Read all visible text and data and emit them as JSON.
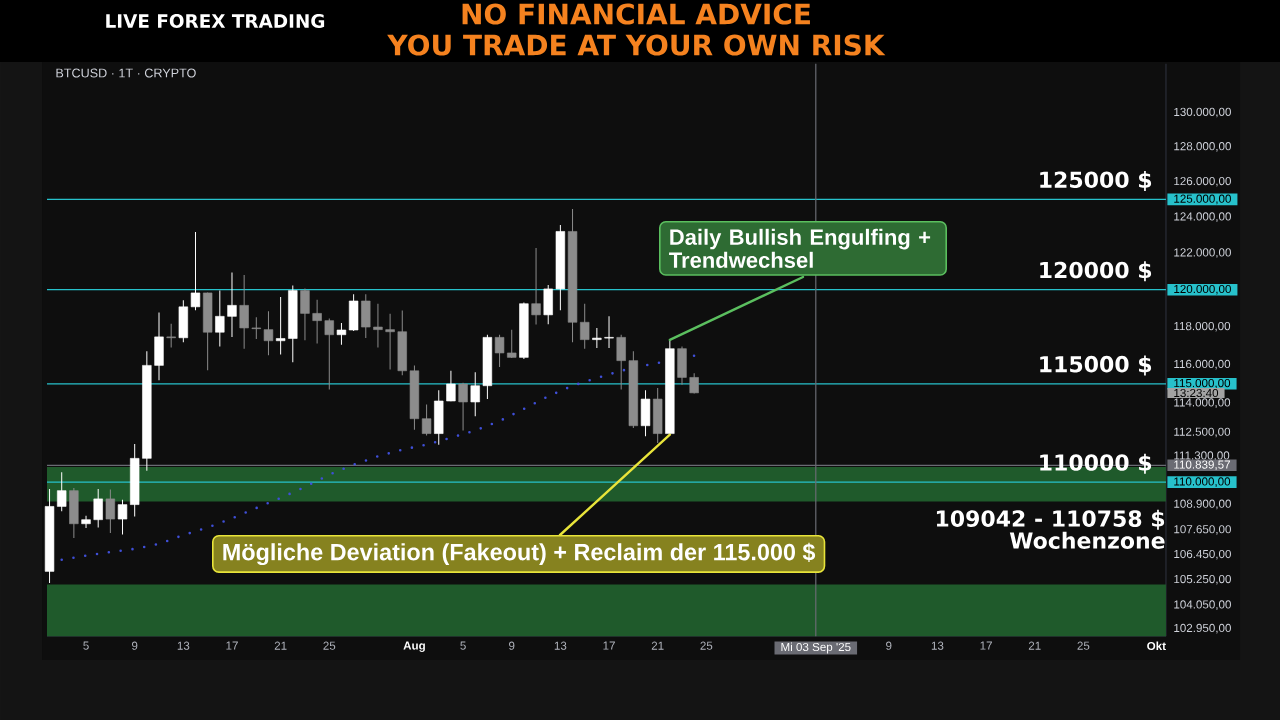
{
  "chart_data": {
    "type": "candlestick",
    "title": "BTCUSD · 1T · CRYPTO",
    "x": [
      "2025-07-02",
      "2025-07-03",
      "2025-07-04",
      "2025-07-05",
      "2025-07-06",
      "2025-07-07",
      "2025-07-08",
      "2025-07-09",
      "2025-07-10",
      "2025-07-11",
      "2025-07-12",
      "2025-07-13",
      "2025-07-14",
      "2025-07-15",
      "2025-07-16",
      "2025-07-17",
      "2025-07-18",
      "2025-07-19",
      "2025-07-20",
      "2025-07-21",
      "2025-07-22",
      "2025-07-23",
      "2025-07-24",
      "2025-07-25",
      "2025-07-26",
      "2025-07-27",
      "2025-07-28",
      "2025-07-29",
      "2025-07-30",
      "2025-07-31",
      "2025-08-01",
      "2025-08-02",
      "2025-08-03",
      "2025-08-04",
      "2025-08-05",
      "2025-08-06",
      "2025-08-07",
      "2025-08-08",
      "2025-08-09",
      "2025-08-10",
      "2025-08-11",
      "2025-08-12",
      "2025-08-13",
      "2025-08-14",
      "2025-08-15",
      "2025-08-16",
      "2025-08-17",
      "2025-08-18",
      "2025-08-19",
      "2025-08-20",
      "2025-08-21",
      "2025-08-22",
      "2025-08-23",
      "2025-08-24"
    ],
    "ohlc": [
      [
        105650,
        109660,
        105100,
        108800
      ],
      [
        108800,
        110490,
        108560,
        109580
      ],
      [
        109580,
        109710,
        107260,
        107950
      ],
      [
        107950,
        108340,
        107740,
        108150
      ],
      [
        108150,
        109660,
        107770,
        109170
      ],
      [
        109170,
        109630,
        107500,
        108180
      ],
      [
        108180,
        109130,
        107420,
        108890
      ],
      [
        108890,
        111910,
        108310,
        111190
      ],
      [
        111190,
        116700,
        110570,
        115960
      ],
      [
        115960,
        118770,
        115180,
        117460
      ],
      [
        117460,
        118170,
        116910,
        117420
      ],
      [
        117420,
        119420,
        117180,
        119070
      ],
      [
        119070,
        123170,
        118880,
        119820
      ],
      [
        119820,
        119850,
        115700,
        117710
      ],
      [
        117710,
        119960,
        116960,
        118560
      ],
      [
        118560,
        120940,
        117460,
        119150
      ],
      [
        119150,
        120800,
        116840,
        117940
      ],
      [
        117940,
        118510,
        117350,
        117900
      ],
      [
        117850,
        118830,
        116490,
        117260
      ],
      [
        117260,
        119600,
        116530,
        117380
      ],
      [
        117380,
        120230,
        116120,
        119950
      ],
      [
        119950,
        120070,
        117280,
        118720
      ],
      [
        118720,
        119460,
        117110,
        118330
      ],
      [
        118330,
        118440,
        114700,
        117580
      ],
      [
        117580,
        118210,
        117050,
        117830
      ],
      [
        117830,
        119750,
        117780,
        119390
      ],
      [
        119390,
        119750,
        117410,
        117990
      ],
      [
        117990,
        119230,
        116910,
        117850
      ],
      [
        117850,
        118700,
        115740,
        117740
      ],
      [
        117740,
        118870,
        115440,
        115680
      ],
      [
        115680,
        115960,
        112640,
        113200
      ],
      [
        113200,
        113930,
        112340,
        112440
      ],
      [
        112440,
        114660,
        111880,
        114110
      ],
      [
        114110,
        115680,
        114090,
        114990
      ],
      [
        114990,
        115050,
        112600,
        114060
      ],
      [
        114060,
        115600,
        113320,
        114900
      ],
      [
        114900,
        117580,
        114210,
        117440
      ],
      [
        117440,
        117580,
        115880,
        116610
      ],
      [
        116610,
        117850,
        116350,
        116380
      ],
      [
        116380,
        119300,
        116300,
        119240
      ],
      [
        119240,
        122280,
        118120,
        118640
      ],
      [
        118640,
        120260,
        118140,
        120040
      ],
      [
        120040,
        123560,
        118880,
        123200
      ],
      [
        123200,
        124460,
        117180,
        118240
      ],
      [
        118240,
        119230,
        116840,
        117320
      ],
      [
        117320,
        117940,
        116880,
        117400
      ],
      [
        117400,
        118560,
        116880,
        117440
      ],
      [
        117440,
        117580,
        114700,
        116210
      ],
      [
        116210,
        116700,
        112730,
        112840
      ],
      [
        112840,
        114660,
        112300,
        114210
      ],
      [
        114210,
        114780,
        111970,
        112440
      ],
      [
        112440,
        117320,
        112400,
        116840
      ],
      [
        116840,
        116960,
        114950,
        115330
      ],
      [
        115330,
        115550,
        114500,
        114530
      ]
    ],
    "colors": [
      "#FFFFFF",
      "#FFFFFF",
      "#8C8C8C",
      "#FFFFFF",
      "#FFFFFF",
      "#8C8C8C",
      "#FFFFFF",
      "#FFFFFF",
      "#FFFFFF",
      "#FFFFFF",
      "#8C8C8C",
      "#FFFFFF",
      "#FFFFFF",
      "#8C8C8C",
      "#FFFFFF",
      "#FFFFFF",
      "#8C8C8C",
      "#8C8C8C",
      "#8C8C8C",
      "#FFFFFF",
      "#FFFFFF",
      "#8C8C8C",
      "#8C8C8C",
      "#8C8C8C",
      "#FFFFFF",
      "#FFFFFF",
      "#8C8C8C",
      "#8C8C8C",
      "#8C8C8C",
      "#8C8C8C",
      "#8C8C8C",
      "#8C8C8C",
      "#FFFFFF",
      "#FFFFFF",
      "#8C8C8C",
      "#FFFFFF",
      "#FFFFFF",
      "#8C8C8C",
      "#8C8C8C",
      "#FFFFFF",
      "#8C8C8C",
      "#FFFFFF",
      "#FFFFFF",
      "#8C8C8C",
      "#8C8C8C",
      "#FFFFFF",
      "#FFFFFF",
      "#8C8C8C",
      "#8C8C8C",
      "#FFFFFF",
      "#8C8C8C",
      "#FFFFFF",
      "#8C8C8C",
      "#8C8C8C"
    ],
    "series": [
      {
        "type": "line",
        "color": "#3F4FD8",
        "line_style": "dotted",
        "x": [
          "2025-07-03",
          "2025-07-05",
          "2025-07-07",
          "2025-07-09",
          "2025-07-11",
          "2025-07-13",
          "2025-07-15",
          "2025-07-17",
          "2025-07-19",
          "2025-07-21",
          "2025-07-23",
          "2025-07-25",
          "2025-07-27",
          "2025-07-29",
          "2025-07-31",
          "2025-08-02",
          "2025-08-04",
          "2025-08-06",
          "2025-08-08",
          "2025-08-10",
          "2025-08-12",
          "2025-08-14",
          "2025-08-16",
          "2025-08-18",
          "2025-08-20",
          "2025-08-24"
        ],
        "values": [
          106210,
          106410,
          106580,
          106730,
          106970,
          107400,
          107770,
          108210,
          108720,
          109220,
          109760,
          110370,
          110870,
          111290,
          111630,
          111880,
          112230,
          112600,
          113080,
          113700,
          114350,
          114900,
          115300,
          115680,
          115960,
          116470
        ]
      }
    ],
    "log": "y",
    "xlim": [
      "2025-07-01T19:00",
      "2025-10-01T19:00"
    ],
    "xticks": [
      {
        "value": "2025-07-05",
        "label": "5"
      },
      {
        "value": "2025-07-09",
        "label": "9"
      },
      {
        "value": "2025-07-13",
        "label": "13"
      },
      {
        "value": "2025-07-17",
        "label": "17"
      },
      {
        "value": "2025-07-21",
        "label": "21"
      },
      {
        "value": "2025-07-25",
        "label": "25"
      },
      {
        "value": "2025-08-01",
        "label": "Aug"
      },
      {
        "value": "2025-08-05",
        "label": "5"
      },
      {
        "value": "2025-08-09",
        "label": "9"
      },
      {
        "value": "2025-08-13",
        "label": "13"
      },
      {
        "value": "2025-08-17",
        "label": "17"
      },
      {
        "value": "2025-08-21",
        "label": "21"
      },
      {
        "value": "2025-08-25",
        "label": "25"
      },
      {
        "value": "2025-09-03",
        "label": "Mi 03 Sep '25"
      },
      {
        "value": "2025-09-09",
        "label": "9"
      },
      {
        "value": "2025-09-13",
        "label": "13"
      },
      {
        "value": "2025-09-17",
        "label": "17"
      },
      {
        "value": "2025-09-21",
        "label": "21"
      },
      {
        "value": "2025-09-25",
        "label": "25"
      },
      {
        "value": "2025-10-01",
        "label": "Okt"
      }
    ],
    "ylim": [
      102600,
      132900
    ],
    "yticks": [
      {
        "value": 130000,
        "label": "130.000,00"
      },
      {
        "value": 128000,
        "label": "128.000,00"
      },
      {
        "value": 126000,
        "label": "126.000,00"
      },
      {
        "value": 125000,
        "label": "125.000,00"
      },
      {
        "value": 124000,
        "label": "124.000,00"
      },
      {
        "value": 122000,
        "label": "122.000,00"
      },
      {
        "value": 120000,
        "label": "120.000,00"
      },
      {
        "value": 118000,
        "label": "118.000,00"
      },
      {
        "value": 116000,
        "label": "116.000,00"
      },
      {
        "value": 115000,
        "label": "115.000,00"
      },
      {
        "value": 114000,
        "label": "114.000,00"
      },
      {
        "value": 112500,
        "label": "112.500,00"
      },
      {
        "value": 111300,
        "label": "111.300,00"
      },
      {
        "value": 110839.57,
        "label": "110.839,57"
      },
      {
        "value": 110000,
        "label": "110.000,00"
      },
      {
        "value": 108900,
        "label": "108.900,00"
      },
      {
        "value": 107650,
        "label": "107.650,00"
      },
      {
        "value": 106450,
        "label": "106.450,00"
      },
      {
        "value": 105250,
        "label": "105.250,00"
      },
      {
        "value": 104050,
        "label": "104.050,00"
      },
      {
        "value": 102950,
        "label": "102.950,00"
      }
    ],
    "ref_lines": [
      {
        "axis": "y",
        "value": 125000,
        "label": "125000 $",
        "color": "#27C1CB"
      },
      {
        "axis": "y",
        "value": 120000,
        "label": "120000 $",
        "color": "#27C1CB"
      },
      {
        "axis": "y",
        "value": 115000,
        "label": "115000 $",
        "color": "#27C1CB"
      },
      {
        "axis": "y",
        "value": 110000,
        "label": "110000 $",
        "color": "#27C1CB"
      },
      {
        "axis": "y",
        "value": 110839.57,
        "color": "#6A6B73"
      },
      {
        "axis": "x",
        "value": "2025-09-03",
        "color": "#6A6B73"
      }
    ],
    "bands": [
      {
        "axis": "y",
        "from": 109042,
        "to": 110758,
        "label": "109042 - 110758 $ Wochenzone",
        "color": "#1F5A2B"
      },
      {
        "axis": "y",
        "from": 102600,
        "to": 105020,
        "color": "#1F5A2B"
      }
    ],
    "annotations": [
      "LIVE FOREX TRADING",
      "NO FINANCIAL ADVICE",
      "YOU TRADE AT YOUR OWN RISK",
      {
        "text": "Daily Bullish Engulfing + Trendwechsel",
        "x": "2025-08-22",
        "y": 117320
      },
      {
        "text": "Mögliche Deviation (Fakeout) + Reclaim der 115.000 $",
        "x": "2025-08-22",
        "y": 112400
      },
      "13:23:40"
    ]
  }
}
